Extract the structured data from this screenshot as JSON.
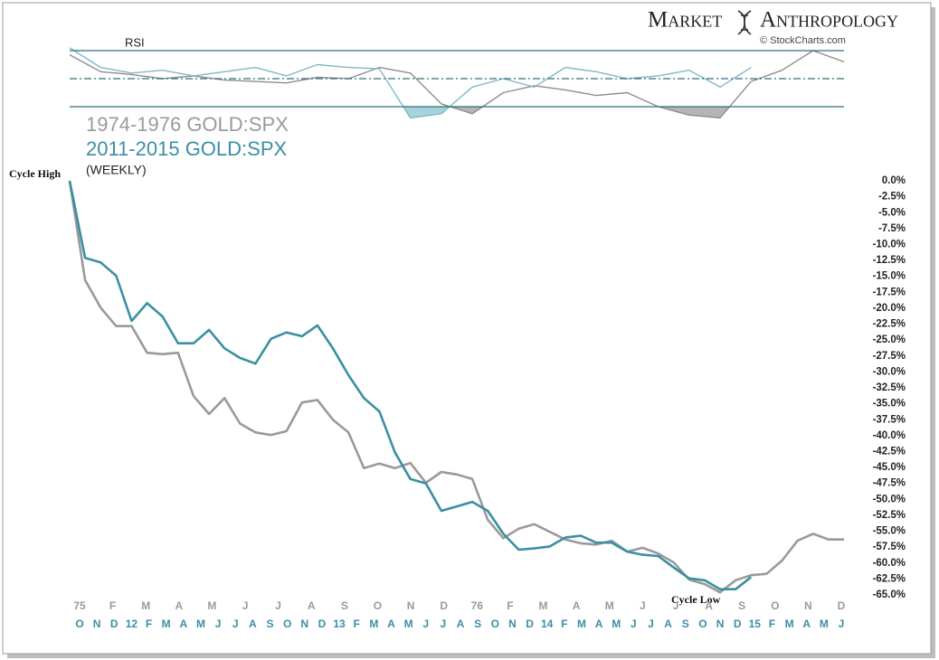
{
  "header": {
    "brand_left": "Market",
    "brand_right": "Anthropology",
    "source": "© StockCharts.com"
  },
  "chart_data": [
    {
      "type": "line",
      "subtitle": "(WEEKLY)",
      "annotations": [
        "Cycle High",
        "Cycle Low"
      ],
      "series": [
        {
          "name": "1974-1976 GOLD:SPX",
          "color": "#9a9a9a",
          "values": [
            0,
            -15.6,
            -19.9,
            -22.8,
            -22.8,
            -27,
            -27.2,
            -27,
            -33.8,
            -36.6,
            -34.1,
            -38.1,
            -39.5,
            -39.9,
            -39.3,
            -34.8,
            -34.4,
            -37.5,
            -39.5,
            -45.1,
            -44.4,
            -45.1,
            -44.3,
            -47.4,
            -45.7,
            -46.1,
            -46.8,
            -53.2,
            -56.1,
            -54.6,
            -53.9,
            -55.1,
            -56.3,
            -56.9,
            -57.1,
            -56.5,
            -58.2,
            -57.6,
            -58.5,
            -59.9,
            -62.6,
            -63.3,
            -64.6,
            -62.7,
            -61.9,
            -61.7,
            -59.6,
            -56.5,
            -55.4,
            -56.3,
            -56.3
          ]
        },
        {
          "name": "2011-2015 GOLD:SPX",
          "color": "#3b8fa3",
          "values": [
            0,
            -12.1,
            -12.8,
            -14.9,
            -22,
            -19.2,
            -21.3,
            -25.5,
            -25.5,
            -23.4,
            -26.3,
            -27.8,
            -28.7,
            -24.8,
            -23.8,
            -24.4,
            -22.7,
            -26.3,
            -30.5,
            -34.1,
            -36.2,
            -42.6,
            -46.8,
            -47.5,
            -51.8,
            -51.1,
            -50.4,
            -51.8,
            -55.4,
            -57.9,
            -57.7,
            -57.4,
            -56,
            -55.7,
            -56.8,
            -56.8,
            -58.2,
            -58.7,
            -58.9,
            -60.7,
            -62.4,
            -62.7,
            -64.1,
            -64.1,
            -62.2,
            null,
            null,
            null,
            null,
            null,
            null
          ]
        }
      ],
      "x_axis_labels": [
        [
          "75",
          "F",
          "M",
          "A",
          "M",
          "J",
          "J",
          "A",
          "S",
          "O",
          "N",
          "D",
          "76",
          "F",
          "M",
          "A",
          "M",
          "J",
          "J",
          "A",
          "S",
          "O",
          "N",
          "D"
        ],
        [
          "O",
          "N",
          "D",
          "12",
          "F",
          "M",
          "A",
          "M",
          "J",
          "J",
          "A",
          "S",
          "O",
          "N",
          "D",
          "13",
          "F",
          "M",
          "A",
          "M",
          "J",
          "J",
          "A",
          "S",
          "O",
          "N",
          "D",
          "14",
          "F",
          "M",
          "A",
          "M",
          "J",
          "J",
          "A",
          "S",
          "O",
          "N",
          "D",
          "15",
          "F",
          "M",
          "A",
          "M",
          "J"
        ]
      ],
      "ylim": [
        -65,
        0
      ],
      "yticks": [
        {
          "value": 0,
          "label": "0.0%"
        },
        {
          "value": -2.5,
          "label": "-2.5%"
        },
        {
          "value": -5,
          "label": "-5.0%"
        },
        {
          "value": -7.5,
          "label": "-7.5%"
        },
        {
          "value": -10,
          "label": "-10.0%"
        },
        {
          "value": -12.5,
          "label": "-12.5%"
        },
        {
          "value": -15,
          "label": "-15.0%"
        },
        {
          "value": -17.5,
          "label": "-17.5%"
        },
        {
          "value": -20,
          "label": "-20.0%"
        },
        {
          "value": -22.5,
          "label": "-22.5%"
        },
        {
          "value": -25,
          "label": "-25.0%"
        },
        {
          "value": -27.5,
          "label": "-27.5%"
        },
        {
          "value": -30,
          "label": "-30.0%"
        },
        {
          "value": -32.5,
          "label": "-32.5%"
        },
        {
          "value": -35,
          "label": "-35.0%"
        },
        {
          "value": -37.5,
          "label": "-37.5%"
        },
        {
          "value": -40,
          "label": "-40.0%"
        },
        {
          "value": -42.5,
          "label": "-42.5%"
        },
        {
          "value": -45,
          "label": "-45.0%"
        },
        {
          "value": -47.5,
          "label": "-47.5%"
        },
        {
          "value": -50,
          "label": "-50.0%"
        },
        {
          "value": -52.5,
          "label": "-52.5%"
        },
        {
          "value": -55,
          "label": "-55.0%"
        },
        {
          "value": -57.5,
          "label": "-57.5%"
        },
        {
          "value": -60,
          "label": "-60.0%"
        },
        {
          "value": -62.5,
          "label": "-62.5%"
        },
        {
          "value": -65,
          "label": "-65.0%"
        }
      ],
      "grid": false
    },
    {
      "type": "line",
      "title": "RSI",
      "series": [
        {
          "color": "#8e8e8e",
          "fill": "#b5b5b5",
          "values": [
            67,
            55,
            53,
            50,
            52,
            49,
            48,
            47,
            51,
            50,
            58,
            54,
            32,
            25,
            40,
            45,
            42,
            38,
            40,
            30,
            24,
            22,
            48,
            56,
            70,
            62
          ]
        },
        {
          "color": "#7fb9c9",
          "fill": "#a8d3dc",
          "values": [
            72,
            58,
            54,
            56,
            52,
            55,
            58,
            52,
            60,
            58,
            57,
            22,
            25,
            44,
            50,
            44,
            58,
            55,
            50,
            52,
            56,
            44,
            58,
            null,
            null,
            null
          ]
        }
      ],
      "reference_lines": [
        70,
        50,
        30
      ],
      "ylim": [
        10,
        90
      ]
    }
  ]
}
